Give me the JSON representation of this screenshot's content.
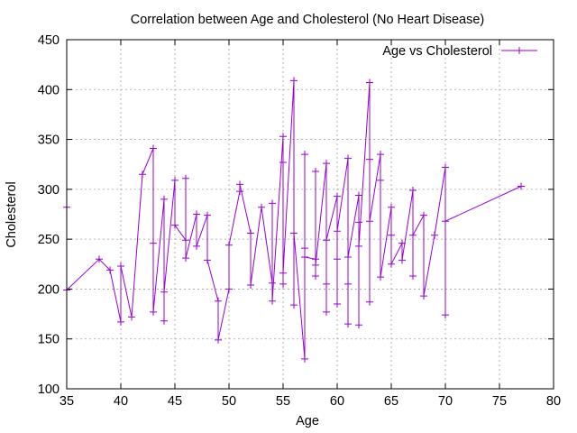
{
  "chart_data": {
    "type": "line",
    "title": "Correlation between Age and Cholesterol (No Heart Disease)",
    "xlabel": "Age",
    "ylabel": "Cholesterol",
    "xlim": [
      35,
      80
    ],
    "ylim": [
      100,
      450
    ],
    "xticks": [
      35,
      40,
      45,
      50,
      55,
      60,
      65,
      70,
      75,
      80
    ],
    "yticks": [
      100,
      150,
      200,
      250,
      300,
      350,
      400,
      450
    ],
    "grid": true,
    "legend_position": "top-right",
    "series": [
      {
        "name": "Age vs Cholesterol",
        "color": "#9400d3",
        "marker": "plus",
        "x": [
          35,
          35,
          38,
          39,
          40,
          40,
          41,
          42,
          43,
          43,
          43,
          44,
          44,
          44,
          45,
          45,
          46,
          46,
          46,
          47,
          47,
          48,
          48,
          49,
          49,
          50,
          50,
          51,
          51,
          52,
          52,
          53,
          54,
          54,
          54,
          55,
          55,
          55,
          55,
          56,
          56,
          56,
          57,
          57,
          57,
          57,
          58,
          58,
          58,
          58,
          59,
          59,
          59,
          59,
          60,
          60,
          60,
          60,
          61,
          61,
          61,
          61,
          62,
          62,
          62,
          62,
          63,
          63,
          63,
          63,
          64,
          64,
          64,
          65,
          65,
          65,
          66,
          66,
          67,
          67,
          67,
          68,
          68,
          69,
          70,
          70,
          70,
          77
        ],
        "y": [
          282,
          199,
          230,
          219,
          167,
          223,
          172,
          315,
          341,
          246,
          177,
          290,
          168,
          197,
          309,
          264,
          249,
          311,
          231,
          275,
          243,
          274,
          229,
          188,
          149,
          200,
          244,
          298,
          305,
          256,
          204,
          282,
          206,
          286,
          188,
          353,
          327,
          205,
          216,
          409,
          184,
          256,
          130,
          335,
          241,
          232,
          230,
          213,
          318,
          224,
          326,
          205,
          177,
          249,
          293,
          230,
          185,
          258,
          331,
          165,
          205,
          232,
          294,
          267,
          164,
          243,
          407,
          330,
          187,
          268,
          335,
          309,
          212,
          282,
          254,
          225,
          246,
          229,
          299,
          213,
          254,
          274,
          193,
          254,
          322,
          174,
          268,
          303
        ]
      }
    ]
  }
}
